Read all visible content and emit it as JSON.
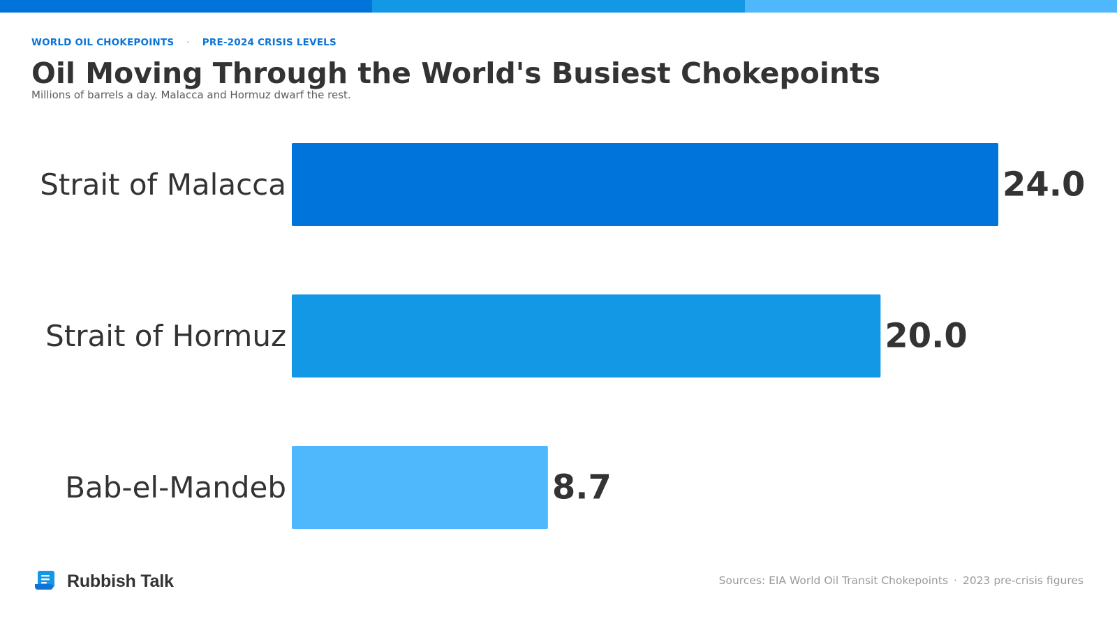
{
  "header": {
    "kicker_left": "WORLD OIL CHOKEPOINTS",
    "kicker_sep": "·",
    "kicker_right": "PRE-2024 CRISIS LEVELS"
  },
  "colors": {
    "accent_dark": "#0074db",
    "accent_mid": "#1398e6",
    "accent_light": "#4fb7fc",
    "text": "#333333"
  },
  "chart_data": {
    "type": "bar",
    "orientation": "horizontal",
    "title": "Oil Moving Through the World's Busiest Chokepoints",
    "subtitle": "Millions of barrels a day. Malacca and Hormuz dwarf the rest.",
    "categories": [
      "Strait of Malacca",
      "Strait of Hormuz",
      "Bab-el-Mandeb"
    ],
    "values": [
      24.0,
      20.0,
      8.7
    ],
    "value_labels": [
      "24.0",
      "20.0",
      "8.7"
    ],
    "bar_colors": [
      "#0074db",
      "#1398e6",
      "#4fb7fc"
    ],
    "xlim": [
      0,
      24.0
    ],
    "grid": false,
    "legend": "none"
  },
  "footer": {
    "brand": "Rubbish Talk",
    "brand_icon": "scroll-icon",
    "source": "Sources: EIA World Oil Transit Chokepoints",
    "source_sep": "·",
    "source_note": "2023 pre-crisis figures"
  }
}
